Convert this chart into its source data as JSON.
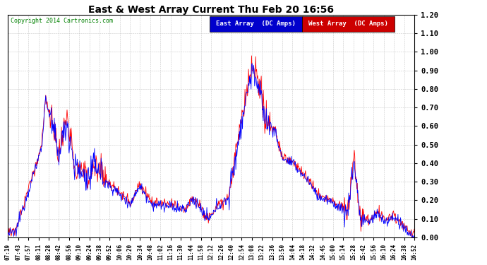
{
  "title": "East & West Array Current Thu Feb 20 16:56",
  "copyright": "Copyright 2014 Cartronics.com",
  "legend_east": "East Array  (DC Amps)",
  "legend_west": "West Array  (DC Amps)",
  "east_color": "#0000FF",
  "west_color": "#FF0000",
  "east_bg": "#0000CC",
  "west_bg": "#CC0000",
  "ylim": [
    0.0,
    1.2
  ],
  "yticks": [
    0.0,
    0.1,
    0.2,
    0.3,
    0.4,
    0.5,
    0.6,
    0.7,
    0.8,
    0.9,
    1.0,
    1.1,
    1.2
  ],
  "x_labels": [
    "07:19",
    "07:43",
    "07:57",
    "08:11",
    "08:28",
    "08:42",
    "08:56",
    "09:10",
    "09:24",
    "09:38",
    "09:52",
    "10:06",
    "10:20",
    "10:34",
    "10:48",
    "11:02",
    "11:16",
    "11:30",
    "11:44",
    "11:58",
    "12:12",
    "12:26",
    "12:40",
    "12:54",
    "13:08",
    "13:22",
    "13:36",
    "13:50",
    "14:04",
    "14:18",
    "14:32",
    "14:45",
    "15:00",
    "15:14",
    "15:28",
    "15:42",
    "15:56",
    "16:10",
    "16:24",
    "16:38",
    "16:52"
  ],
  "background_color": "#ffffff",
  "grid_color": "#bbbbbb"
}
